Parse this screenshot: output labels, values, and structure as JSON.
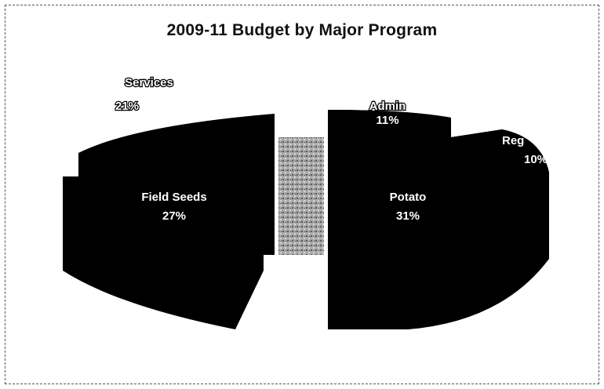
{
  "chart_data": {
    "type": "pie",
    "title": "2009-11 Budget by Major Program",
    "slices": [
      {
        "label": "Potato",
        "value": 31,
        "pct_label": "31%"
      },
      {
        "label": "Reg",
        "value": 10,
        "pct_label": "10%"
      },
      {
        "label": "Admin",
        "value": 11,
        "pct_label": "11%"
      },
      {
        "label": "Services",
        "value": 21,
        "pct_label": "21%"
      },
      {
        "label": "Field Seeds",
        "value": 27,
        "pct_label": "27%"
      }
    ],
    "colors": {
      "slice_fill": "#000000",
      "label_inside": "#ffffff",
      "label_outside": "#ffffff"
    }
  }
}
